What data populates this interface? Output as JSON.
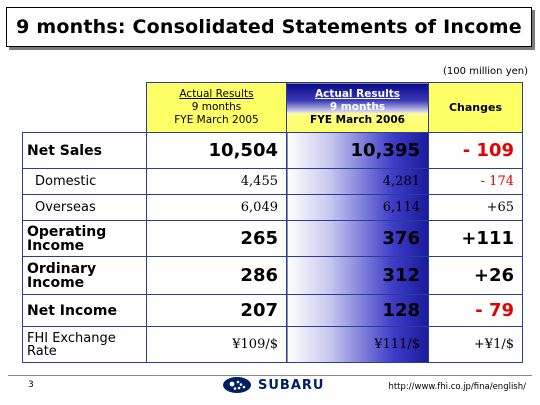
{
  "title": "9 months: Consolidated Statements of Income",
  "unit_note": "(100 million yen)",
  "headers": {
    "col2005": {
      "line1": "Actual Results",
      "line2": "9 months",
      "line3": "FYE March 2005"
    },
    "col2006": {
      "line1": "Actual Results",
      "line2": "9 months",
      "line3": "FYE March 2006"
    },
    "changes": "Changes"
  },
  "rows": [
    {
      "label": "Net Sales",
      "v2005": "10,504",
      "v2006": "10,395",
      "change": "- 109"
    },
    {
      "label": "Domestic",
      "v2005": "4,455",
      "v2006": "4,281",
      "change": "- 174"
    },
    {
      "label": "Overseas",
      "v2005": "6,049",
      "v2006": "6,114",
      "change": "+65"
    },
    {
      "label_line1": "Operating",
      "label_line2": "Income",
      "v2005": "265",
      "v2006": "376",
      "change": "+111"
    },
    {
      "label_line1": "Ordinary",
      "label_line2": "Income",
      "v2005": "286",
      "v2006": "312",
      "change": "+26"
    },
    {
      "label": "Net Income",
      "v2005": "207",
      "v2006": "128",
      "change": "- 79"
    },
    {
      "label_line1": "FHI Exchange",
      "label_line2": "Rate",
      "v2005": "¥109/$",
      "v2006": "¥111/$",
      "change": "+¥1/$"
    }
  ],
  "footer": {
    "page_number": "3",
    "logo_text": "SUBARU",
    "url": "http://www.fhi.co.jp/fina/english/"
  },
  "colors": {
    "header_yellow": "#ffff66",
    "negative_red": "#e60000",
    "accent_blue": "#1a1a9c"
  }
}
